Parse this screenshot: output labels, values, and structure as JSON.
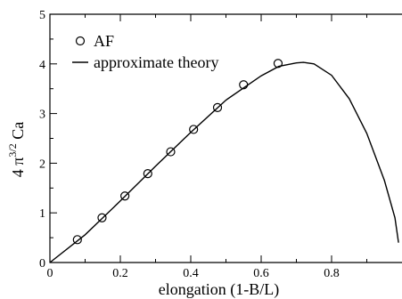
{
  "chart_data": {
    "type": "scatter",
    "title": "",
    "xlabel": "elongation (1-B/L)",
    "ylabel": {
      "prefix": "4 π",
      "superscript": "3/2",
      "suffix": " Ca"
    },
    "xlim": [
      0,
      1
    ],
    "ylim": [
      0,
      5
    ],
    "x_ticks": [
      0,
      0.2,
      0.4,
      0.6,
      0.8
    ],
    "x_tick_labels": [
      "0",
      "0.2",
      "0.4",
      "0.6",
      "0.8"
    ],
    "y_ticks": [
      0,
      1,
      2,
      3,
      4,
      5
    ],
    "y_tick_labels": [
      "0",
      "1",
      "2",
      "3",
      "4",
      "5"
    ],
    "grid": false,
    "legend_position": "top-left",
    "series": [
      {
        "name": "AF",
        "kind": "scatter",
        "marker": "open-circle",
        "x": [
          0.078,
          0.148,
          0.213,
          0.278,
          0.343,
          0.408,
          0.476,
          0.55,
          0.648
        ],
        "y": [
          0.46,
          0.9,
          1.34,
          1.79,
          2.23,
          2.68,
          3.12,
          3.58,
          4.01
        ]
      },
      {
        "name": "approximate theory",
        "kind": "line",
        "x": [
          0,
          0.1,
          0.2,
          0.3,
          0.4,
          0.5,
          0.6,
          0.65,
          0.7,
          0.72,
          0.75,
          0.8,
          0.85,
          0.9,
          0.95,
          0.98,
          0.99
        ],
        "y": [
          0,
          0.56,
          1.24,
          1.94,
          2.62,
          3.27,
          3.76,
          3.95,
          4.02,
          4.03,
          4.0,
          3.77,
          3.3,
          2.6,
          1.65,
          0.9,
          0.4
        ]
      }
    ]
  }
}
